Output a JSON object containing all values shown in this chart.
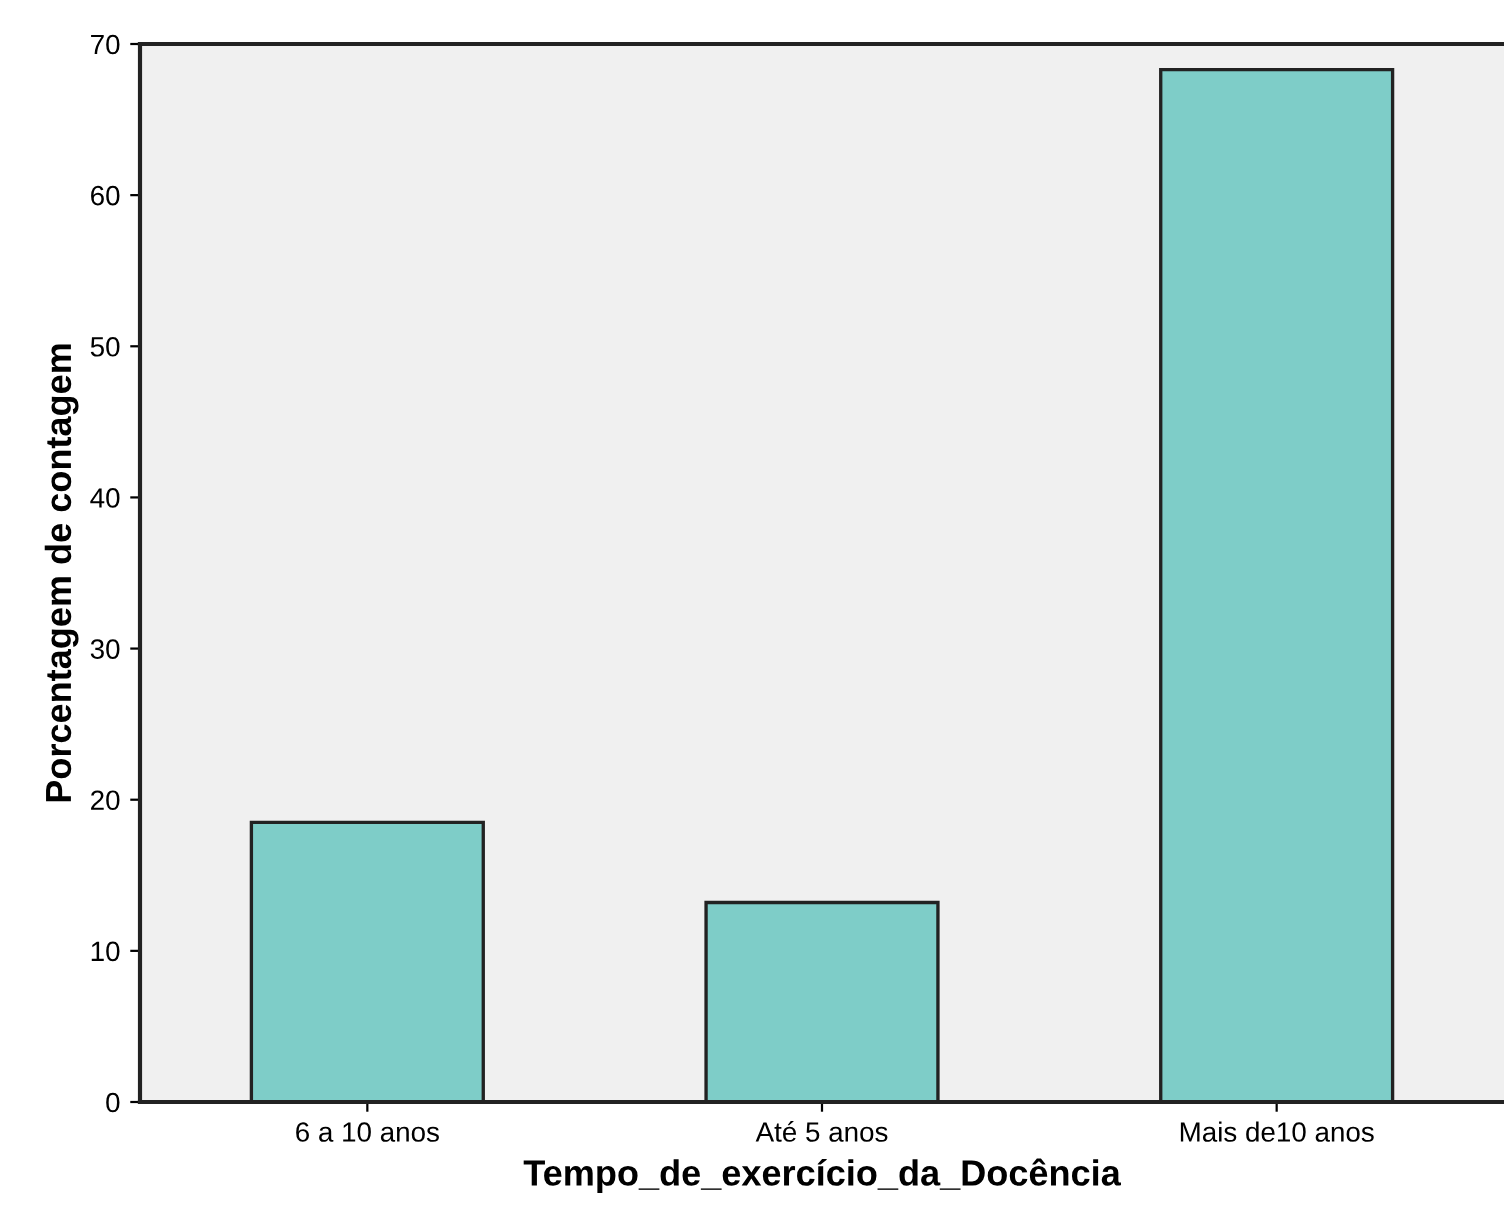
{
  "chart_data": {
    "type": "bar",
    "xlabel": "Tempo_de_exercício_da_Docência",
    "ylabel": "Porcentagem de contagem",
    "categories": [
      "6 a 10 anos",
      "Até 5 anos",
      "Mais de10 anos"
    ],
    "values": [
      18.5,
      13.2,
      68.3
    ],
    "color": "#7ecdc8",
    "ylim": [
      0,
      70
    ],
    "yticks": [
      0,
      10,
      20,
      30,
      40,
      50,
      60,
      70
    ],
    "grid": false
  }
}
